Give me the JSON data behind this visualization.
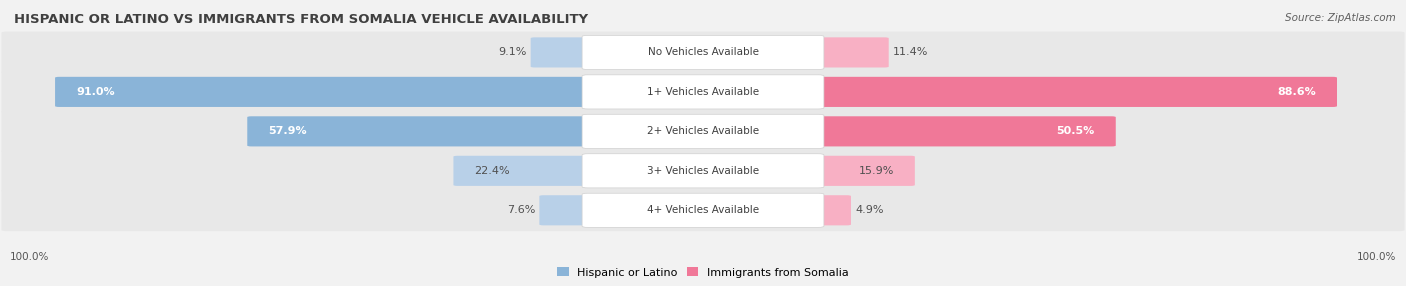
{
  "title": "HISPANIC OR LATINO VS IMMIGRANTS FROM SOMALIA VEHICLE AVAILABILITY",
  "source": "Source: ZipAtlas.com",
  "categories": [
    "No Vehicles Available",
    "1+ Vehicles Available",
    "2+ Vehicles Available",
    "3+ Vehicles Available",
    "4+ Vehicles Available"
  ],
  "hispanic_values": [
    9.1,
    91.0,
    57.9,
    22.4,
    7.6
  ],
  "somalia_values": [
    11.4,
    88.6,
    50.5,
    15.9,
    4.9
  ],
  "hispanic_color": "#8ab4d8",
  "somalia_color": "#f07898",
  "hispanic_color_light": "#b8d0e8",
  "somalia_color_light": "#f8b0c4",
  "background_color": "#f2f2f2",
  "row_bg_color": "#e6e6e6",
  "label_bg_color": "#ffffff",
  "title_fontsize": 9.5,
  "bar_label_fontsize": 8,
  "category_fontsize": 7.5,
  "legend_fontsize": 8,
  "footer_fontsize": 7.5
}
